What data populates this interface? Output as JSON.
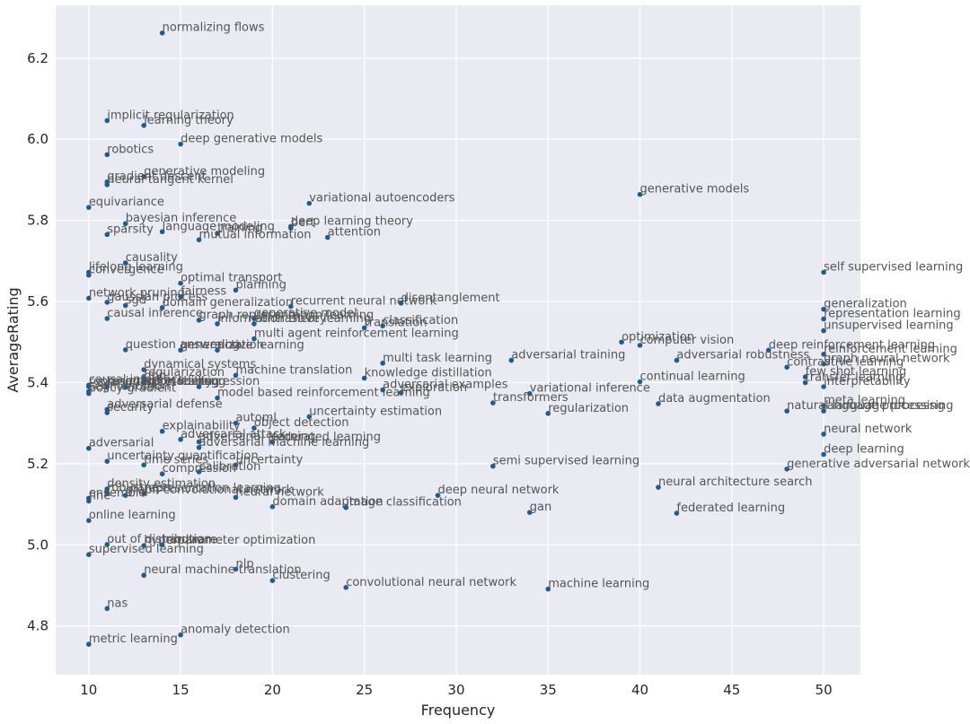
{
  "chart_data": {
    "type": "scatter",
    "xlabel": "Frequency",
    "ylabel": "AverageRating",
    "xlim": [
      8.2,
      52
    ],
    "ylim": [
      4.68,
      6.33
    ],
    "xticks": [
      "10",
      "15",
      "20",
      "25",
      "30",
      "35",
      "40",
      "45",
      "50"
    ],
    "yticks": [
      "4.8",
      "5.0",
      "5.2",
      "5.4",
      "5.6",
      "5.8",
      "6.0",
      "6.2"
    ],
    "grid": true,
    "colors": {
      "background": "#EAEAF2",
      "grid": "#FFFFFF",
      "point": "#1F5C8F",
      "text": "#555555"
    },
    "points": [
      {
        "label": "normalizing flows",
        "x": 14,
        "y": 6.262
      },
      {
        "label": "implicit regularization",
        "x": 11,
        "y": 6.046
      },
      {
        "label": "learning theory",
        "x": 13,
        "y": 6.034
      },
      {
        "label": "deep generative models",
        "x": 15,
        "y": 5.988
      },
      {
        "label": "robotics",
        "x": 11,
        "y": 5.962
      },
      {
        "label": "generative modeling",
        "x": 13,
        "y": 5.908
      },
      {
        "label": "gradient descent",
        "x": 11,
        "y": 5.895
      },
      {
        "label": "neural tangent kernel",
        "x": 11,
        "y": 5.888
      },
      {
        "label": "generative models",
        "x": 40,
        "y": 5.864
      },
      {
        "label": "variational autoencoders",
        "x": 22,
        "y": 5.842
      },
      {
        "label": "equivariance",
        "x": 10,
        "y": 5.832
      },
      {
        "label": "bayesian inference",
        "x": 12,
        "y": 5.792
      },
      {
        "label": "deep learning theory",
        "x": 21,
        "y": 5.785
      },
      {
        "label": "bert",
        "x": 21,
        "y": 5.781
      },
      {
        "label": "language modeling",
        "x": 14,
        "y": 5.772
      },
      {
        "label": "training",
        "x": 17,
        "y": 5.768
      },
      {
        "label": "sparsity",
        "x": 11,
        "y": 5.765
      },
      {
        "label": "mutual information",
        "x": 16,
        "y": 5.752
      },
      {
        "label": "attention",
        "x": 23,
        "y": 5.758
      },
      {
        "label": "causality",
        "x": 12,
        "y": 5.695
      },
      {
        "label": "lifelong learning",
        "x": 10,
        "y": 5.672
      },
      {
        "label": "convergence",
        "x": 10,
        "y": 5.665
      },
      {
        "label": "self supervised learning",
        "x": 50,
        "y": 5.672
      },
      {
        "label": "optimal transport",
        "x": 15,
        "y": 5.645
      },
      {
        "label": "planning",
        "x": 18,
        "y": 5.628
      },
      {
        "label": "network pruning",
        "x": 10,
        "y": 5.608
      },
      {
        "label": "fairness",
        "x": 15,
        "y": 5.612
      },
      {
        "label": "gaussian process",
        "x": 11,
        "y": 5.598
      },
      {
        "label": "sgd",
        "x": 12,
        "y": 5.59
      },
      {
        "label": "domain generalization",
        "x": 14,
        "y": 5.585
      },
      {
        "label": "recurrent neural network",
        "x": 21,
        "y": 5.588
      },
      {
        "label": "disentanglement",
        "x": 27,
        "y": 5.596
      },
      {
        "label": "generalization",
        "x": 50,
        "y": 5.581
      },
      {
        "label": "causal inference",
        "x": 11,
        "y": 5.558
      },
      {
        "label": "graph representation learning",
        "x": 16,
        "y": 5.554
      },
      {
        "label": "generative model",
        "x": 19,
        "y": 5.558
      },
      {
        "label": "information theory",
        "x": 17,
        "y": 5.545
      },
      {
        "label": "contrastive learning",
        "x": 19,
        "y": 5.545
      },
      {
        "label": "translation",
        "x": 25,
        "y": 5.535
      },
      {
        "label": "classification",
        "x": 26,
        "y": 5.54
      },
      {
        "label": "representation learning",
        "x": 50,
        "y": 5.557
      },
      {
        "label": "multi agent reinforcement learning",
        "x": 19,
        "y": 5.508
      },
      {
        "label": "unsupervised learning",
        "x": 50,
        "y": 5.528
      },
      {
        "label": "optimization",
        "x": 39,
        "y": 5.5
      },
      {
        "label": "computer vision",
        "x": 40,
        "y": 5.492
      },
      {
        "label": "question answering",
        "x": 12,
        "y": 5.481
      },
      {
        "label": "generalization",
        "x": 15,
        "y": 5.48
      },
      {
        "label": "active learning",
        "x": 17,
        "y": 5.48
      },
      {
        "label": "deep reinforcement learning",
        "x": 47,
        "y": 5.48
      },
      {
        "label": "reinforcement learning",
        "x": 50,
        "y": 5.47
      },
      {
        "label": "multi task learning",
        "x": 26,
        "y": 5.448
      },
      {
        "label": "adversarial training",
        "x": 33,
        "y": 5.455
      },
      {
        "label": "adversarial robustness",
        "x": 42,
        "y": 5.455
      },
      {
        "label": "graph neural network",
        "x": 50,
        "y": 5.446
      },
      {
        "label": "contrastive learning",
        "x": 48,
        "y": 5.438
      },
      {
        "label": "dynamical systems",
        "x": 13,
        "y": 5.432
      },
      {
        "label": "machine translation",
        "x": 18,
        "y": 5.418
      },
      {
        "label": "few shot learning",
        "x": 49,
        "y": 5.414
      },
      {
        "label": "knowledge distillation",
        "x": 25,
        "y": 5.411
      },
      {
        "label": "regularization",
        "x": 13,
        "y": 5.412
      },
      {
        "label": "continual learning",
        "x": 40,
        "y": 5.402
      },
      {
        "label": "transfer learning",
        "x": 49,
        "y": 5.4
      },
      {
        "label": "causal inference",
        "x": 10,
        "y": 5.394
      },
      {
        "label": "gnn",
        "x": 13,
        "y": 5.403
      },
      {
        "label": "interpretability",
        "x": 50,
        "y": 5.39
      },
      {
        "label": "representation learning",
        "x": 10,
        "y": 5.39
      },
      {
        "label": "language modeling",
        "x": 11,
        "y": 5.39
      },
      {
        "label": "interpretability",
        "x": 12,
        "y": 5.39
      },
      {
        "label": "regression",
        "x": 16,
        "y": 5.39
      },
      {
        "label": "adversarial examples",
        "x": 26,
        "y": 5.382
      },
      {
        "label": "exploration",
        "x": 27,
        "y": 5.375
      },
      {
        "label": "segmentation",
        "x": 10,
        "y": 5.378
      },
      {
        "label": "variational inference",
        "x": 34,
        "y": 5.373
      },
      {
        "label": "policy gradient",
        "x": 10,
        "y": 5.373
      },
      {
        "label": "model based reinforcement learning",
        "x": 17,
        "y": 5.362
      },
      {
        "label": "transformers",
        "x": 32,
        "y": 5.35
      },
      {
        "label": "data augmentation",
        "x": 41,
        "y": 5.348
      },
      {
        "label": "meta learning",
        "x": 50,
        "y": 5.343
      },
      {
        "label": "adversarial defense",
        "x": 11,
        "y": 5.334
      },
      {
        "label": "natural language processing",
        "x": 48,
        "y": 5.33
      },
      {
        "label": "language processing",
        "x": 50,
        "y": 5.33
      },
      {
        "label": "security",
        "x": 11,
        "y": 5.326
      },
      {
        "label": "regularization",
        "x": 35,
        "y": 5.324
      },
      {
        "label": "uncertainty estimation",
        "x": 22,
        "y": 5.316
      },
      {
        "label": "automl",
        "x": 18,
        "y": 5.3
      },
      {
        "label": "object detection",
        "x": 19,
        "y": 5.288
      },
      {
        "label": "explainability",
        "x": 14,
        "y": 5.28
      },
      {
        "label": "neural network",
        "x": 50,
        "y": 5.273
      },
      {
        "label": "adversarial attack",
        "x": 15,
        "y": 5.26
      },
      {
        "label": "adversarial learning",
        "x": 16,
        "y": 5.254
      },
      {
        "label": "federated learning",
        "x": 20,
        "y": 5.253
      },
      {
        "label": "adversarial",
        "x": 10,
        "y": 5.238
      },
      {
        "label": "adversarial machine learning",
        "x": 16,
        "y": 5.24
      },
      {
        "label": "deep learning",
        "x": 50,
        "y": 5.223
      },
      {
        "label": "uncertainty quantification",
        "x": 11,
        "y": 5.206
      },
      {
        "label": "time series",
        "x": 13,
        "y": 5.197
      },
      {
        "label": "uncertainty",
        "x": 18,
        "y": 5.197
      },
      {
        "label": "semi supervised learning",
        "x": 32,
        "y": 5.194
      },
      {
        "label": "generative adversarial network",
        "x": 48,
        "y": 5.187
      },
      {
        "label": "compression",
        "x": 14,
        "y": 5.175
      },
      {
        "label": "calibration",
        "x": 16,
        "y": 5.18
      },
      {
        "label": "neural architecture search",
        "x": 41,
        "y": 5.142
      },
      {
        "label": "density estimation",
        "x": 11,
        "y": 5.138
      },
      {
        "label": "robustness",
        "x": 11,
        "y": 5.128
      },
      {
        "label": "representation learning",
        "x": 13,
        "y": 5.127
      },
      {
        "label": "deep neural network",
        "x": 29,
        "y": 5.122
      },
      {
        "label": "graph convolutional network",
        "x": 12,
        "y": 5.122
      },
      {
        "label": "ensemble",
        "x": 10,
        "y": 5.115
      },
      {
        "label": "fine",
        "x": 10,
        "y": 5.108
      },
      {
        "label": "neural network",
        "x": 18,
        "y": 5.117
      },
      {
        "label": "domain adaptation",
        "x": 20,
        "y": 5.094
      },
      {
        "label": "image classification",
        "x": 24,
        "y": 5.092
      },
      {
        "label": "gan",
        "x": 34,
        "y": 5.08
      },
      {
        "label": "federated learning",
        "x": 42,
        "y": 5.078
      },
      {
        "label": "online learning",
        "x": 10,
        "y": 5.06
      },
      {
        "label": "out of distribution",
        "x": 11,
        "y": 5.001
      },
      {
        "label": "hyperparameter optimization",
        "x": 13,
        "y": 4.998
      },
      {
        "label": "hardware",
        "x": 14,
        "y": 5.0
      },
      {
        "label": "supervised learning",
        "x": 10,
        "y": 4.976
      },
      {
        "label": "nlp",
        "x": 18,
        "y": 4.94
      },
      {
        "label": "neural machine translation",
        "x": 13,
        "y": 4.925
      },
      {
        "label": "clustering",
        "x": 20,
        "y": 4.912
      },
      {
        "label": "convolutional neural network",
        "x": 24,
        "y": 4.895
      },
      {
        "label": "machine learning",
        "x": 35,
        "y": 4.891
      },
      {
        "label": "nas",
        "x": 11,
        "y": 4.843
      },
      {
        "label": "anomaly detection",
        "x": 15,
        "y": 4.778
      },
      {
        "label": "metric learning",
        "x": 10,
        "y": 4.755
      }
    ]
  }
}
